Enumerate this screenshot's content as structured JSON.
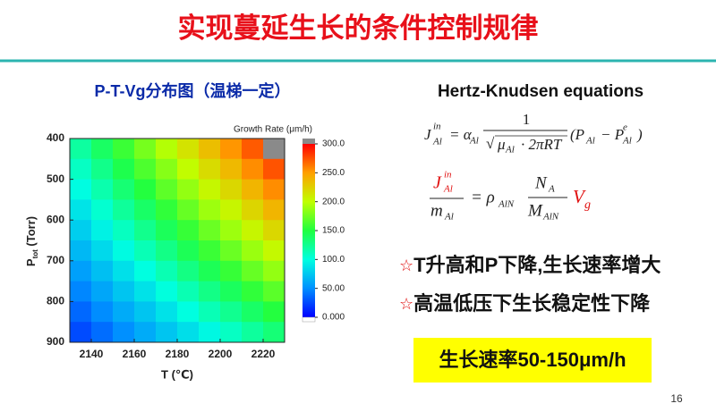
{
  "header": {
    "title": "实现蔓延生长的条件控制规律"
  },
  "chart_data": {
    "type": "contour",
    "title": "P-T-Vg分布图（温梯一定）",
    "x_label": "T (℃)",
    "y_label": "P",
    "y_label_sub": "tot",
    "y_label_unit": " (Torr)",
    "colorbar_label": "Growth Rate (μm/h)",
    "x": [
      2135,
      2145,
      2155,
      2165,
      2175,
      2185,
      2195,
      2205,
      2215,
      2225
    ],
    "y": [
      425,
      475,
      525,
      575,
      625,
      675,
      725,
      775,
      825,
      875
    ],
    "z": [
      [
        120,
        139,
        158,
        177,
        196,
        215,
        234,
        253,
        272,
        310
      ],
      [
        109,
        127,
        146,
        164,
        182,
        201,
        219,
        237,
        256,
        274
      ],
      [
        99,
        116,
        134,
        151,
        169,
        186,
        204,
        221,
        239,
        256
      ],
      [
        88,
        105,
        122,
        138,
        155,
        172,
        189,
        205,
        222,
        239
      ],
      [
        78,
        94,
        110,
        126,
        142,
        157,
        173,
        189,
        205,
        221
      ],
      [
        68,
        83,
        98,
        113,
        128,
        143,
        158,
        173,
        188,
        203
      ],
      [
        57,
        71,
        86,
        100,
        114,
        129,
        143,
        157,
        172,
        186
      ],
      [
        47,
        60,
        74,
        87,
        101,
        114,
        128,
        141,
        155,
        168
      ],
      [
        36,
        49,
        62,
        74,
        87,
        100,
        113,
        125,
        138,
        151
      ],
      [
        26,
        38,
        50,
        62,
        74,
        85,
        97,
        109,
        121,
        133
      ]
    ],
    "xlim": [
      2130,
      2230
    ],
    "xticks": [
      2140,
      2160,
      2180,
      2200,
      2220
    ],
    "ylim": [
      400,
      900
    ],
    "y_reversed": true,
    "yticks": [
      400,
      500,
      600,
      700,
      800,
      900
    ],
    "zlim": [
      0,
      300
    ],
    "zticks": [
      {
        "value": 0,
        "label": "0.000"
      },
      {
        "value": 50,
        "label": "50.00"
      },
      {
        "value": 100,
        "label": "100.0"
      },
      {
        "value": 150,
        "label": "150.0"
      },
      {
        "value": 200,
        "label": "200.0"
      },
      {
        "value": 250,
        "label": "250.0"
      },
      {
        "value": 300,
        "label": "300.0"
      }
    ],
    "colorscale": [
      "#0000ff",
      "#0090ff",
      "#00ffe0",
      "#20ff40",
      "#c0ff00",
      "#ffa000",
      "#ff0000"
    ],
    "over_color": "#8a8a8a"
  },
  "equations": {
    "heading": "Hertz-Knudsen equations",
    "eq1": {
      "j": "J",
      "j_sup": "in",
      "j_sub": "Al",
      "alpha": "= α",
      "alpha_sub": "Al",
      "num": "1",
      "root": "√",
      "mu": "μ",
      "mu_sub": "Al",
      "den_rest": "· 2πRT",
      "p1": "(P",
      "p1_sub": "Al",
      "p2": "− P",
      "p2_sup": "e",
      "p2_sub": "Al",
      "close": ")"
    },
    "eq2": {
      "j": "J",
      "j_sup": "in",
      "j_sub": "Al",
      "m": "m",
      "m_sub": "Al",
      "rho": "= ρ",
      "rho_sub": "AlN",
      "n": "N",
      "n_sub": "A",
      "big_m": "M",
      "big_m_sub": "AlN",
      "v": "V",
      "v_sub": "g"
    }
  },
  "bullets": [
    {
      "mark": "☆",
      "text": "T升高和P下降,生长速率增大"
    },
    {
      "mark": "☆",
      "text": "高温低压下生长稳定性下降"
    }
  ],
  "highlight": "生长速率50-150μm/h",
  "page_number": "16"
}
